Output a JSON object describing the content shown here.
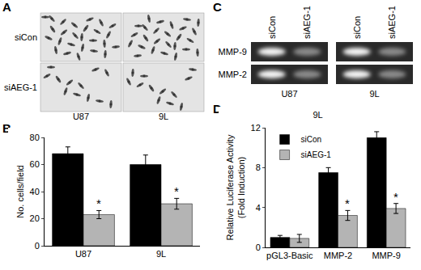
{
  "letters": [
    "A",
    "B",
    "C",
    "D"
  ],
  "panel_a": {
    "rows": [
      "siCon",
      "siAEG-1"
    ],
    "columns": [
      "U87",
      "9L"
    ]
  },
  "panel_c": {
    "lanes": [
      "siCon",
      "siAEG-1"
    ],
    "rows": [
      "MMP-9",
      "MMP-2"
    ],
    "columns": [
      "U87",
      "9L"
    ]
  },
  "chart_data": [
    {
      "type": "bar",
      "categories": [
        "U87",
        "9L"
      ],
      "y_label": "No. cells/field",
      "ylim": [
        0,
        80
      ],
      "yticks": [
        0,
        20,
        40,
        60,
        80
      ],
      "grid": false,
      "series": [
        {
          "color": "#000000",
          "values": [
            68,
            60
          ],
          "errors": [
            5,
            7
          ]
        },
        {
          "color": "#b4b4b4",
          "values": [
            23,
            31
          ],
          "errors": [
            3,
            4
          ]
        }
      ],
      "annotations": [
        {
          "text": "*",
          "category": "U87",
          "series": 1
        },
        {
          "text": "*",
          "category": "9L",
          "series": 1
        }
      ]
    },
    {
      "type": "bar",
      "title": "9L",
      "categories": [
        "pGL3-Basic",
        "MMP-2",
        "MMP-9"
      ],
      "y_label": [
        "Relative Luciferase Activity",
        "(Fold Induction)"
      ],
      "ylim": [
        0,
        12
      ],
      "yticks": [
        0,
        4,
        8,
        12
      ],
      "grid": false,
      "legend": "top-left",
      "series": [
        {
          "name": "siCon",
          "color": "#000000",
          "values": [
            1,
            7.5,
            11
          ],
          "errors": [
            0.2,
            0.5,
            0.6
          ]
        },
        {
          "name": "siAEG-1",
          "color": "#b4b4b4",
          "values": [
            0.9,
            3.2,
            3.9
          ],
          "errors": [
            0.4,
            0.5,
            0.5
          ]
        }
      ],
      "annotations": [
        {
          "text": "*",
          "category": "MMP-2",
          "series": 1
        },
        {
          "text": "*",
          "category": "MMP-9",
          "series": 1
        }
      ]
    }
  ]
}
